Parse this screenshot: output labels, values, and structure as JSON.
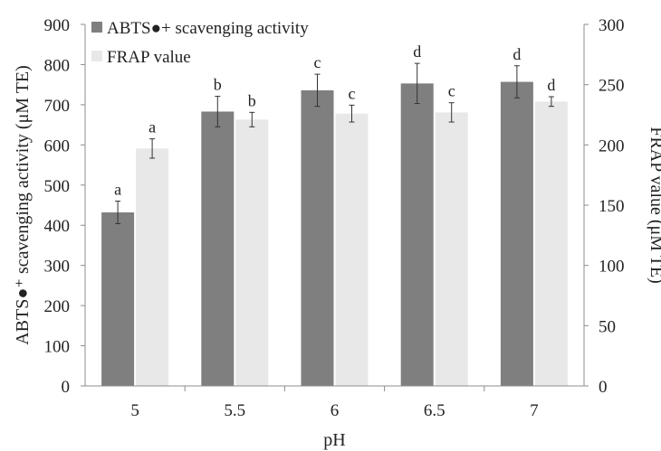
{
  "chart_data": {
    "type": "bar",
    "categories": [
      "5",
      "5.5",
      "6",
      "6.5",
      "7"
    ],
    "xlabel": "pH",
    "ylabel_left": "ABTS●⁺ scavenging activity (μM TE)",
    "ylabel_right": "FRAP value (μM TE)",
    "ylim_left": [
      0,
      900
    ],
    "ylim_right": [
      0,
      300
    ],
    "yticks_left": [
      "0",
      "100",
      "200",
      "300",
      "400",
      "500",
      "600",
      "700",
      "800",
      "900"
    ],
    "yticks_right": [
      "0",
      "50",
      "100",
      "150",
      "200",
      "250",
      "300"
    ],
    "legend_position": "top-left",
    "grid": false,
    "series": [
      {
        "name": "ABTS●+ scavenging activity",
        "axis": "left",
        "color": "#7f7f7f",
        "values": [
          432,
          683,
          736,
          753,
          757
        ],
        "errors": [
          28,
          38,
          40,
          50,
          40
        ],
        "labels": [
          "a",
          "b",
          "c",
          "d",
          "d"
        ]
      },
      {
        "name": "FRAP value",
        "axis": "right",
        "color": "#e8e8e8",
        "values": [
          197,
          221,
          226,
          227,
          236
        ],
        "errors": [
          8,
          6,
          7,
          8,
          4
        ],
        "labels": [
          "a",
          "b",
          "c",
          "c",
          "d"
        ]
      }
    ]
  }
}
